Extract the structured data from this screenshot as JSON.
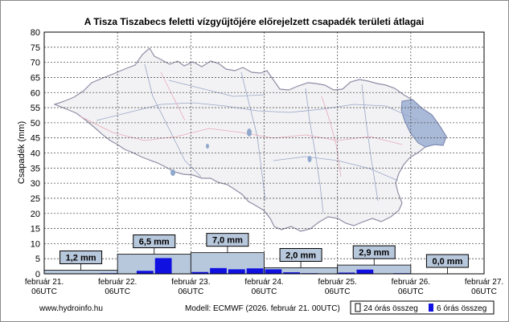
{
  "chart_data": {
    "type": "bar",
    "title": "A Tisza Tiszabecs feletti vízgyűjtőjére előrejelzett csapadék területi átlagai",
    "ylabel": "Csapadék (mm)",
    "xlabel": "",
    "ylim": [
      0,
      80
    ],
    "yticks": [
      0,
      5,
      10,
      15,
      20,
      25,
      30,
      35,
      40,
      45,
      50,
      55,
      60,
      65,
      70,
      75,
      80
    ],
    "xlim_hours": [
      0,
      144
    ],
    "grid": true,
    "x_tick_labels": [
      {
        "line1": "február 21.",
        "line2": "06UTC"
      },
      {
        "line1": "február 22.",
        "line2": "06UTC"
      },
      {
        "line1": "február 23.",
        "line2": "06UTC"
      },
      {
        "line1": "február 24.",
        "line2": "06UTC"
      },
      {
        "line1": "február 25.",
        "line2": "06UTC"
      },
      {
        "line1": "február 26.",
        "line2": "06UTC"
      },
      {
        "line1": "február 27.",
        "line2": "06UTC"
      }
    ],
    "series": [
      {
        "name": "24 órás összeg",
        "color": "#b8c8dc",
        "values": [
          1.2,
          6.5,
          7.0,
          2.0,
          2.9,
          0.0
        ],
        "labels": [
          "1,2 mm",
          "6,5 mm",
          "7,0 mm",
          "2,0 mm",
          "2,9 mm",
          "0,0 mm"
        ]
      },
      {
        "name": "6 órás összeg",
        "color": "#1010e0",
        "values": [
          0.0,
          0.1,
          0.1,
          0.2,
          0.1,
          1.0,
          5.2,
          0.1,
          0.6,
          1.9,
          1.5,
          1.8,
          1.5,
          0.5,
          0.2,
          0.0,
          0.4,
          1.4,
          0.1,
          0.2,
          0.0,
          0.0,
          0.0,
          0.0
        ]
      }
    ],
    "legend": "bottom-right"
  },
  "footer": {
    "website": "www.hydroinfo.hu",
    "model": "Modell: ECMWF (2026. február 21. 00UTC)"
  }
}
